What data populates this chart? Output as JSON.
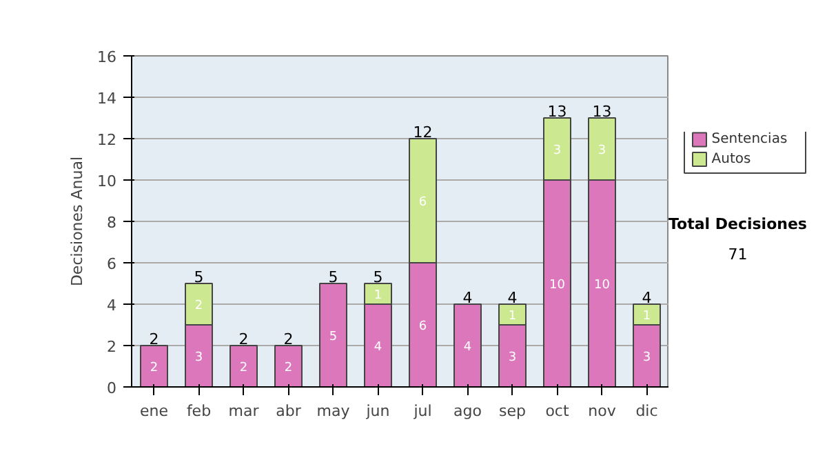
{
  "chart_data": {
    "type": "bar",
    "stacked": true,
    "ylabel": "Decisiones Anual",
    "categories": [
      "ene",
      "feb",
      "mar",
      "abr",
      "may",
      "jun",
      "jul",
      "ago",
      "sep",
      "oct",
      "nov",
      "dic"
    ],
    "series": [
      {
        "name": "Sentencias",
        "color": "#dd77bb",
        "values": [
          2,
          3,
          2,
          2,
          5,
          4,
          6,
          4,
          3,
          10,
          10,
          3
        ],
        "value_labels": [
          "2",
          "3",
          "2",
          "2",
          "5",
          "4",
          "6",
          "4",
          "3",
          "10",
          "10",
          "3"
        ]
      },
      {
        "name": "Autos",
        "color": "#cce890",
        "values": [
          0,
          2,
          0,
          0,
          0,
          1,
          6,
          0,
          1,
          3,
          3,
          1
        ],
        "value_labels": [
          null,
          "2",
          null,
          null,
          null,
          "1",
          "6",
          null,
          "1",
          "3",
          "3",
          "1"
        ]
      }
    ],
    "totals": [
      "2",
      "5",
      "2",
      "2",
      "5",
      "5",
      "12",
      "4",
      "4",
      "13",
      "13",
      "4"
    ],
    "ylim": [
      0,
      16
    ],
    "yticks": [
      0,
      2,
      4,
      6,
      8,
      10,
      12,
      14,
      16
    ],
    "grid": "y",
    "legend": "right",
    "annotations": [
      "Total Decisiones",
      "71"
    ]
  }
}
